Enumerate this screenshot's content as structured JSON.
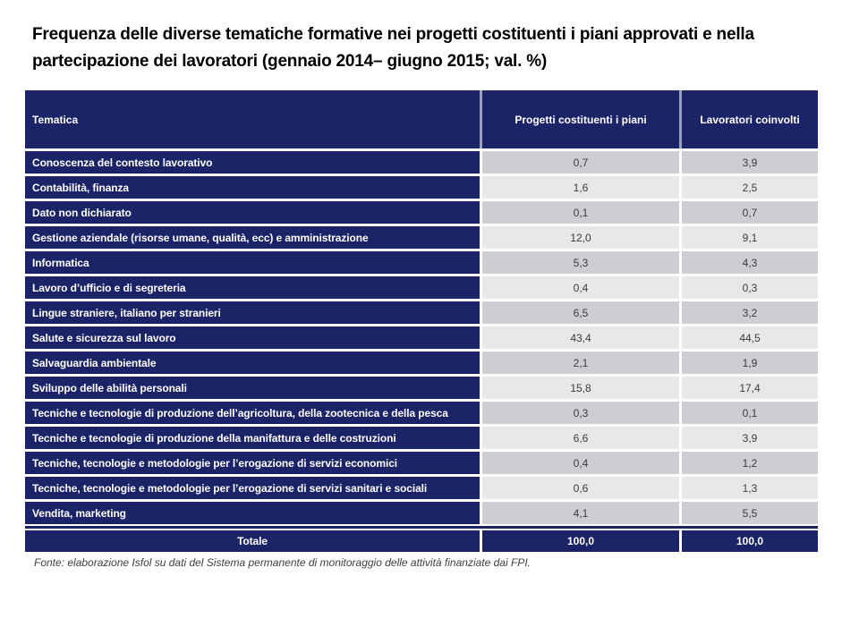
{
  "title": "Frequenza delle diverse tematiche formative nei progetti costituenti i piani approvati e nella partecipazione dei lavoratori (gennaio 2014– giugno 2015; val. %)",
  "table": {
    "columns": [
      "Tematica",
      "Progetti costituenti i piani",
      "Lavoratori coinvolti"
    ],
    "rows": [
      {
        "tematica": "Conoscenza del contesto lavorativo",
        "progetti": "0,7",
        "lavoratori": "3,9"
      },
      {
        "tematica": "Contabilità, finanza",
        "progetti": "1,6",
        "lavoratori": "2,5"
      },
      {
        "tematica": "Dato non dichiarato",
        "progetti": "0,1",
        "lavoratori": "0,7"
      },
      {
        "tematica": "Gestione aziendale (risorse umane, qualità, ecc) e amministrazione",
        "progetti": "12,0",
        "lavoratori": "9,1"
      },
      {
        "tematica": "Informatica",
        "progetti": "5,3",
        "lavoratori": "4,3"
      },
      {
        "tematica": "Lavoro d’ufficio e di segreteria",
        "progetti": "0,4",
        "lavoratori": "0,3"
      },
      {
        "tematica": "Lingue straniere, italiano per stranieri",
        "progetti": "6,5",
        "lavoratori": "3,2"
      },
      {
        "tematica": "Salute e sicurezza sul lavoro",
        "progetti": "43,4",
        "lavoratori": "44,5"
      },
      {
        "tematica": "Salvaguardia ambientale",
        "progetti": "2,1",
        "lavoratori": "1,9"
      },
      {
        "tematica": "Sviluppo delle abilità personali",
        "progetti": "15,8",
        "lavoratori": "17,4"
      },
      {
        "tematica": "Tecniche e tecnologie di produzione dell’agricoltura, della zootecnica e della pesca",
        "progetti": "0,3",
        "lavoratori": "0,1"
      },
      {
        "tematica": "Tecniche e tecnologie di produzione della manifattura e delle costruzioni",
        "progetti": "6,6",
        "lavoratori": "3,9"
      },
      {
        "tematica": "Tecniche, tecnologie e metodologie per l’erogazione di servizi economici",
        "progetti": "0,4",
        "lavoratori": "1,2"
      },
      {
        "tematica": "Tecniche, tecnologie e metodologie per l’erogazione di servizi sanitari e sociali",
        "progetti": "0,6",
        "lavoratori": "1,3"
      },
      {
        "tematica": "Vendita, marketing",
        "progetti": "4,1",
        "lavoratori": "5,5"
      }
    ],
    "totale": {
      "label": "Totale",
      "progetti": "100,0",
      "lavoratori": "100,0"
    }
  },
  "fonte": "Fonte: elaborazione Isfol su dati del Sistema permanente di monitoraggio delle attività finanziate dai FPI.",
  "colors": {
    "navy": "#1B2467",
    "row_dark": "#CDCED2",
    "row_light": "#E8E8EA",
    "header_divider": "#9AA1BF"
  }
}
